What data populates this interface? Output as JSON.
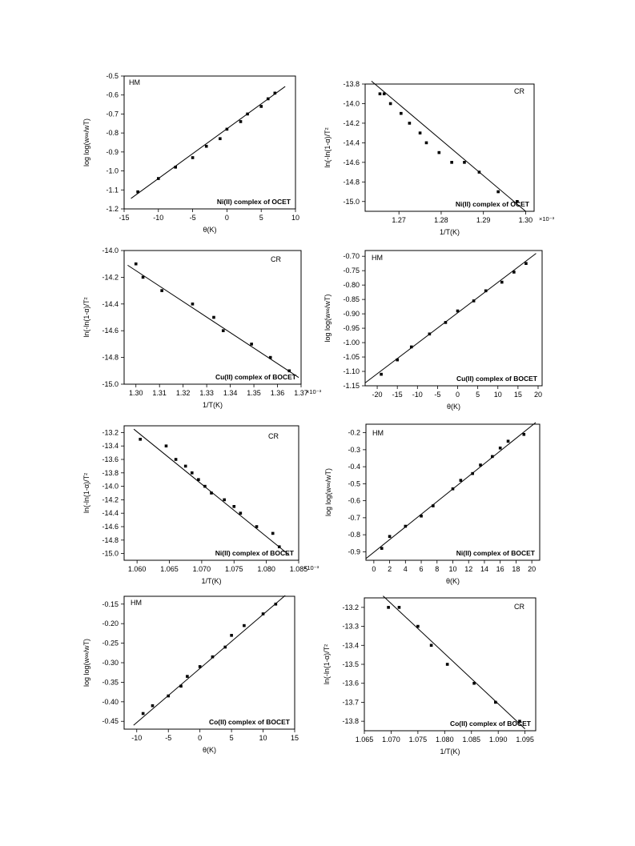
{
  "chart_data": [
    {
      "type": "scatter",
      "label": "HM",
      "caption": "Ni(II) complex of OCET",
      "xlabel": "θ(K)",
      "ylabel": "log log(w∞/wT)",
      "xlim": [
        -15,
        10
      ],
      "ylim": [
        -1.2,
        -0.5
      ],
      "xticks": [
        -15,
        -10,
        -5,
        0,
        5,
        10
      ],
      "yticks": [
        -1.2,
        -1.1,
        -1.0,
        -0.9,
        -0.8,
        -0.7,
        -0.6,
        -0.5
      ],
      "x_multiplier": "",
      "points": {
        "x": [
          -13,
          -10,
          -7.5,
          -5,
          -3,
          -1,
          0,
          2,
          3,
          5,
          6,
          7
        ],
        "y": [
          -1.11,
          -1.04,
          -0.98,
          -0.93,
          -0.87,
          -0.83,
          -0.78,
          -0.74,
          -0.7,
          -0.66,
          -0.62,
          -0.59
        ]
      },
      "fit": {
        "x": [
          -14,
          8.5
        ],
        "y": [
          -1.145,
          -0.555
        ]
      }
    },
    {
      "type": "scatter",
      "label": "CR",
      "caption": "Ni(II) complex of OCET",
      "xlabel": "1/T(K)",
      "ylabel": "ln(-ln(1-α)/T²",
      "xlim": [
        1.262,
        1.302
      ],
      "ylim": [
        -15.1,
        -13.8
      ],
      "xticks": [
        1.27,
        1.28,
        1.29,
        1.3
      ],
      "yticks": [
        -15.0,
        -14.8,
        -14.6,
        -14.4,
        -14.2,
        -14.0,
        -13.8
      ],
      "x_multiplier": "×10⁻³",
      "points": {
        "x": [
          1.2655,
          1.2665,
          1.268,
          1.2705,
          1.2725,
          1.275,
          1.2765,
          1.2795,
          1.2825,
          1.2855,
          1.289,
          1.2935,
          1.298
        ],
        "y": [
          -13.9,
          -13.9,
          -14.0,
          -14.1,
          -14.2,
          -14.3,
          -14.4,
          -14.5,
          -14.6,
          -14.6,
          -14.7,
          -14.9,
          -15.0
        ]
      },
      "fit": {
        "x": [
          1.2635,
          1.3
        ],
        "y": [
          -13.77,
          -15.1
        ]
      }
    },
    {
      "type": "scatter",
      "label": "CR",
      "caption": "Cu(II) complex of BOCET",
      "xlabel": "1/T(K)",
      "ylabel": "ln(-ln(1-α)/T²",
      "xlim": [
        1.295,
        1.37
      ],
      "ylim": [
        -15.0,
        -14.0
      ],
      "xticks": [
        1.3,
        1.31,
        1.32,
        1.33,
        1.34,
        1.35,
        1.36,
        1.37
      ],
      "yticks": [
        -15.0,
        -14.8,
        -14.6,
        -14.4,
        -14.2,
        -14.0
      ],
      "x_multiplier": "×10⁻³",
      "points": {
        "x": [
          1.3,
          1.303,
          1.311,
          1.324,
          1.333,
          1.337,
          1.349,
          1.357,
          1.365
        ],
        "y": [
          -14.1,
          -14.2,
          -14.3,
          -14.4,
          -14.5,
          -14.6,
          -14.7,
          -14.8,
          -14.9
        ]
      },
      "fit": {
        "x": [
          1.2965,
          1.369
        ],
        "y": [
          -14.11,
          -14.95
        ]
      }
    },
    {
      "type": "scatter",
      "label": "HM",
      "caption": "Cu(II) complex of BOCET",
      "xlabel": "θ(K)",
      "ylabel": "log log(w∞/wT)",
      "xlim": [
        -23,
        21
      ],
      "ylim": [
        -1.15,
        -0.68
      ],
      "xticks": [
        -20,
        -15,
        -10,
        -5,
        0,
        5,
        10,
        15,
        20
      ],
      "yticks": [
        -1.15,
        -1.1,
        -1.05,
        -1.0,
        -0.95,
        -0.9,
        -0.85,
        -0.8,
        -0.75,
        -0.7
      ],
      "x_multiplier": "",
      "points": {
        "x": [
          -19,
          -15,
          -11.5,
          -7,
          -3,
          0,
          4,
          7,
          11,
          14,
          17
        ],
        "y": [
          -1.11,
          -1.06,
          -1.015,
          -0.97,
          -0.93,
          -0.89,
          -0.855,
          -0.82,
          -0.79,
          -0.755,
          -0.725
        ]
      },
      "fit": {
        "x": [
          -23,
          19.5
        ],
        "y": [
          -1.14,
          -0.69
        ]
      }
    },
    {
      "type": "scatter",
      "label": "CR",
      "caption": "Ni(II) complex of BOCET",
      "xlabel": "1/T(K)",
      "ylabel": "ln(-ln(1-α)/T²",
      "xlim": [
        1.058,
        1.085
      ],
      "ylim": [
        -15.1,
        -13.1
      ],
      "xticks": [
        1.06,
        1.065,
        1.07,
        1.075,
        1.08,
        1.085
      ],
      "yticks": [
        -15.0,
        -14.8,
        -14.6,
        -14.4,
        -14.2,
        -14.0,
        -13.8,
        -13.6,
        -13.4,
        -13.2
      ],
      "x_multiplier": "×10⁻³",
      "points": {
        "x": [
          1.0605,
          1.0645,
          1.066,
          1.0675,
          1.0685,
          1.0695,
          1.0705,
          1.0715,
          1.0735,
          1.075,
          1.076,
          1.0785,
          1.081,
          1.082
        ],
        "y": [
          -13.3,
          -13.4,
          -13.6,
          -13.7,
          -13.8,
          -13.9,
          -14.0,
          -14.1,
          -14.2,
          -14.3,
          -14.4,
          -14.6,
          -14.7,
          -14.9
        ]
      },
      "fit": {
        "x": [
          1.0595,
          1.0835
        ],
        "y": [
          -13.15,
          -15.02
        ]
      }
    },
    {
      "type": "scatter",
      "label": "HM",
      "caption": "Ni(II) complex of BOCET",
      "xlabel": "θ(K)",
      "ylabel": "log log(w∞/wT)",
      "xlim": [
        -1,
        21
      ],
      "ylim": [
        -0.95,
        -0.15
      ],
      "xticks": [
        0,
        2,
        4,
        6,
        8,
        10,
        12,
        14,
        16,
        18,
        20
      ],
      "yticks": [
        -0.9,
        -0.8,
        -0.7,
        -0.6,
        -0.5,
        -0.4,
        -0.3,
        -0.2
      ],
      "x_multiplier": "",
      "points": {
        "x": [
          1,
          2,
          4,
          6,
          7.5,
          10,
          11,
          12.5,
          13.5,
          15,
          16,
          17,
          19
        ],
        "y": [
          -0.88,
          -0.81,
          -0.75,
          -0.69,
          -0.63,
          -0.53,
          -0.48,
          -0.44,
          -0.39,
          -0.34,
          -0.29,
          -0.25,
          -0.21
        ]
      },
      "fit": {
        "x": [
          -1,
          20.5
        ],
        "y": [
          -0.94,
          -0.14
        ]
      }
    },
    {
      "type": "scatter",
      "label": "HM",
      "caption": "Co(II) complex of BOCET",
      "xlabel": "θ(K)",
      "ylabel": "log log(w∞/wT)",
      "xlim": [
        -12,
        15
      ],
      "ylim": [
        -0.47,
        -0.13
      ],
      "xticks": [
        -10,
        -5,
        0,
        5,
        10,
        15
      ],
      "yticks": [
        -0.45,
        -0.4,
        -0.35,
        -0.3,
        -0.25,
        -0.2,
        -0.15
      ],
      "x_multiplier": "",
      "points": {
        "x": [
          -9,
          -7.5,
          -5,
          -3,
          -2,
          0,
          2,
          4,
          5,
          7,
          10,
          12
        ],
        "y": [
          -0.43,
          -0.41,
          -0.385,
          -0.36,
          -0.335,
          -0.31,
          -0.285,
          -0.26,
          -0.23,
          -0.205,
          -0.175,
          -0.15
        ]
      },
      "fit": {
        "x": [
          -10.5,
          13.5
        ],
        "y": [
          -0.46,
          -0.128
        ]
      }
    },
    {
      "type": "scatter",
      "label": "CR",
      "caption": "Co(II) complex of BOCET",
      "xlabel": "1/T(K)",
      "ylabel": "ln(-ln(1-α)/T²",
      "xlim": [
        1.065,
        1.097
      ],
      "ylim": [
        -13.85,
        -13.15
      ],
      "xticks": [
        1.065,
        1.07,
        1.075,
        1.08,
        1.085,
        1.09,
        1.095
      ],
      "yticks": [
        -13.8,
        -13.7,
        -13.6,
        -13.5,
        -13.4,
        -13.3,
        -13.2
      ],
      "x_multiplier": "",
      "points": {
        "x": [
          1.0695,
          1.0715,
          1.075,
          1.0775,
          1.0805,
          1.0855,
          1.0895,
          1.094
        ],
        "y": [
          -13.2,
          -13.2,
          -13.3,
          -13.4,
          -13.5,
          -13.6,
          -13.7,
          -13.8
        ]
      },
      "fit": {
        "x": [
          1.0685,
          1.095
        ],
        "y": [
          -13.14,
          -13.84
        ]
      }
    }
  ]
}
